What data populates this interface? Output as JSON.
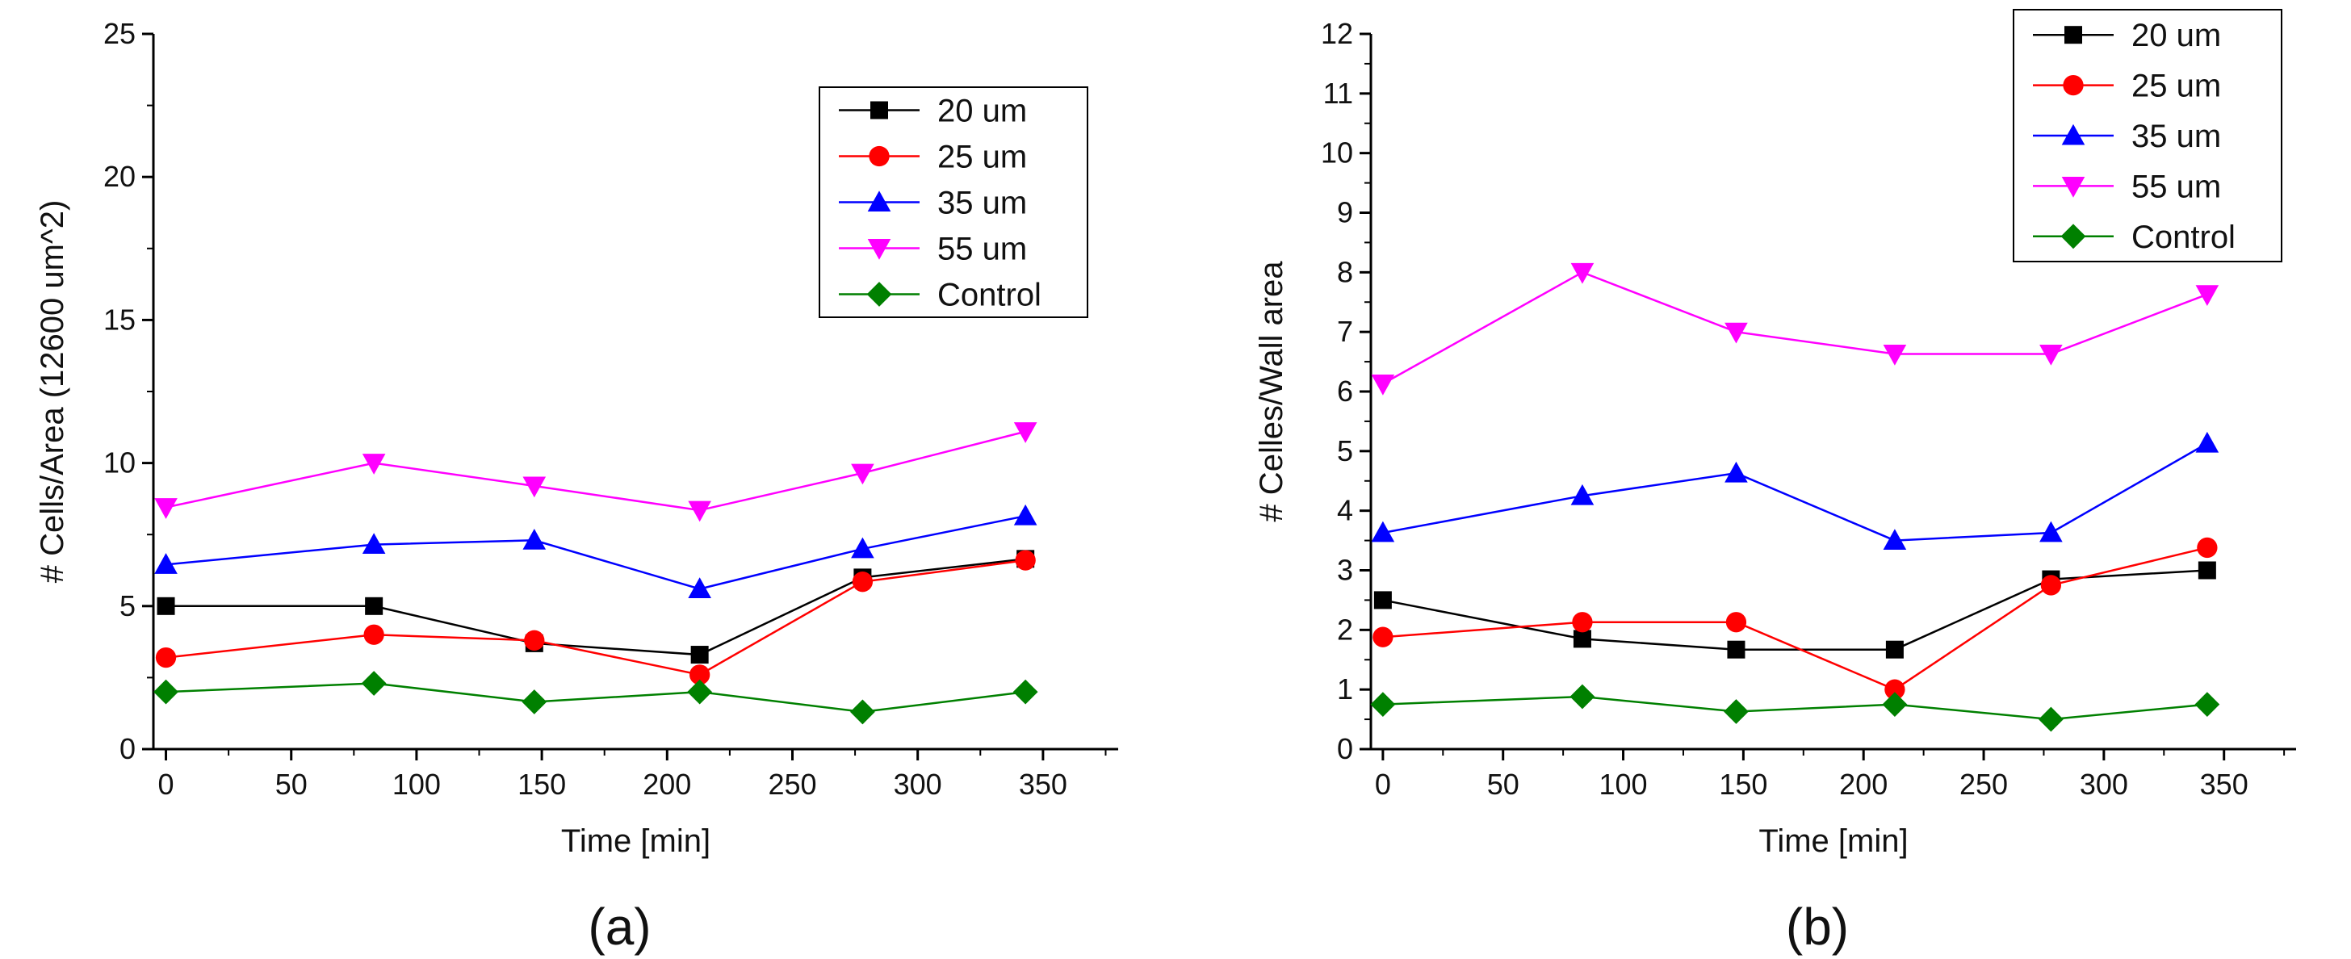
{
  "chart_data": [
    {
      "type": "line",
      "caption": "(a)",
      "xlabel": "Time [min]",
      "ylabel": "# Cells/Area (12600 um^2)",
      "xlim": [
        -5,
        380
      ],
      "ylim": [
        0,
        25
      ],
      "xticks": [
        0,
        50,
        100,
        150,
        200,
        250,
        300,
        350
      ],
      "yticks": [
        0,
        5,
        10,
        15,
        20,
        25
      ],
      "grid": false,
      "legend_position": "top-right",
      "x": [
        0,
        83,
        147,
        213,
        278,
        343
      ],
      "series": [
        {
          "name": "20 um",
          "color": "#000000",
          "marker": "square",
          "values": [
            5.0,
            5.0,
            3.7,
            3.3,
            6.0,
            6.65
          ]
        },
        {
          "name": "25 um",
          "color": "#ff0000",
          "marker": "circle",
          "values": [
            3.2,
            4.0,
            3.8,
            2.6,
            5.85,
            6.6
          ]
        },
        {
          "name": "35 um",
          "color": "#0000ff",
          "marker": "triangle-up",
          "values": [
            6.45,
            7.15,
            7.3,
            5.6,
            7.0,
            8.15
          ]
        },
        {
          "name": "55 um",
          "color": "#ff00ff",
          "marker": "triangle-down",
          "values": [
            8.45,
            10.0,
            9.2,
            8.35,
            9.65,
            11.1
          ]
        },
        {
          "name": "Control",
          "color": "#008000",
          "marker": "diamond",
          "values": [
            2.0,
            2.3,
            1.65,
            2.0,
            1.3,
            2.0
          ]
        }
      ]
    },
    {
      "type": "line",
      "caption": "(b)",
      "xlabel": "Time [min]",
      "ylabel": "# Celles/Wall area",
      "xlim": [
        -5,
        380
      ],
      "ylim": [
        0,
        12
      ],
      "xticks": [
        0,
        50,
        100,
        150,
        200,
        250,
        300,
        350
      ],
      "yticks": [
        0,
        1,
        2,
        3,
        4,
        5,
        6,
        7,
        8,
        9,
        10,
        11,
        12
      ],
      "grid": false,
      "legend_position": "top-right",
      "x": [
        0,
        83,
        147,
        213,
        278,
        343
      ],
      "series": [
        {
          "name": "20 um",
          "color": "#000000",
          "marker": "square",
          "values": [
            2.5,
            1.85,
            1.67,
            1.67,
            2.85,
            3.0
          ]
        },
        {
          "name": "25 um",
          "color": "#ff0000",
          "marker": "circle",
          "values": [
            1.88,
            2.13,
            2.13,
            1.0,
            2.75,
            3.38
          ]
        },
        {
          "name": "35 um",
          "color": "#0000ff",
          "marker": "triangle-up",
          "values": [
            3.63,
            4.25,
            4.63,
            3.5,
            3.63,
            5.13
          ]
        },
        {
          "name": "55 um",
          "color": "#ff00ff",
          "marker": "triangle-down",
          "values": [
            6.13,
            8.0,
            7.0,
            6.63,
            6.63,
            7.63
          ]
        },
        {
          "name": "Control",
          "color": "#008000",
          "marker": "diamond",
          "values": [
            0.75,
            0.88,
            0.63,
            0.75,
            0.5,
            0.75
          ]
        }
      ]
    }
  ]
}
